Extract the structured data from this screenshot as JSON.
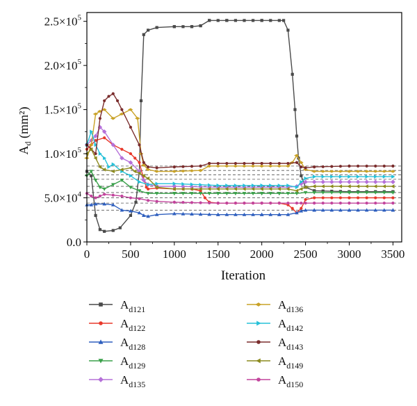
{
  "chart_data": {
    "type": "line",
    "title": "",
    "xlabel": "Iteration",
    "ylabel": "A_d (mm²)",
    "ylabel_main": "A",
    "ylabel_sub": "d",
    "ylabel_unit": " (mm²)",
    "xlim": [
      0,
      3600
    ],
    "ylim": [
      0,
      260000
    ],
    "xticks": [
      {
        "value": 0,
        "label": "0"
      },
      {
        "value": 500,
        "label": "500"
      },
      {
        "value": 1000,
        "label": "1000"
      },
      {
        "value": 1500,
        "label": "1500"
      },
      {
        "value": 2000,
        "label": "2000"
      },
      {
        "value": 2500,
        "label": "2500"
      },
      {
        "value": 3000,
        "label": "3000"
      },
      {
        "value": 3500,
        "label": "3500"
      }
    ],
    "yticks": [
      {
        "value": 0,
        "mant": "0.0",
        "exp": ""
      },
      {
        "value": 50000,
        "mant": "5.0×10",
        "exp": "4"
      },
      {
        "value": 100000,
        "mant": "1.0×10",
        "exp": "5"
      },
      {
        "value": 150000,
        "mant": "1.5×10",
        "exp": "5"
      },
      {
        "value": 200000,
        "mant": "2.0×10",
        "exp": "5"
      },
      {
        "value": 250000,
        "mant": "2.5×10",
        "exp": "5"
      }
    ],
    "grid": false,
    "legend_position": "below",
    "reference_lines": [
      36000,
      44000,
      50000,
      56000,
      63000,
      71000,
      76000,
      81000,
      86000
    ],
    "series": [
      {
        "name": "A_d121",
        "label_main": "A",
        "label_sub": "d121",
        "color": "#4a4a4a",
        "marker": "square",
        "x": [
          0,
          50,
          100,
          150,
          200,
          300,
          380,
          500,
          560,
          600,
          620,
          650,
          700,
          800,
          1000,
          1200,
          1300,
          1400,
          1600,
          2000,
          2250,
          2300,
          2350,
          2380,
          2400,
          2420,
          2450,
          2500,
          2600,
          3000,
          3500
        ],
        "values": [
          80000,
          75000,
          30000,
          14000,
          12000,
          13000,
          16000,
          30000,
          45000,
          80000,
          160000,
          235000,
          240000,
          243000,
          244000,
          244000,
          245000,
          251000,
          251000,
          251000,
          251000,
          240000,
          190000,
          150000,
          120000,
          95000,
          75000,
          62000,
          58000,
          57000,
          57000
        ]
      },
      {
        "name": "A_d122",
        "label_main": "A",
        "label_sub": "d122",
        "color": "#e8392b",
        "marker": "circle",
        "x": [
          0,
          50,
          100,
          200,
          300,
          400,
          500,
          550,
          600,
          640,
          680,
          700,
          800,
          1000,
          1200,
          1300,
          1350,
          1400,
          1500,
          2000,
          2200,
          2300,
          2350,
          2400,
          2450,
          2500,
          2600,
          3000,
          3500
        ],
        "values": [
          105000,
          110000,
          115000,
          118000,
          110000,
          105000,
          100000,
          95000,
          90000,
          75000,
          62000,
          60000,
          61000,
          60000,
          60000,
          58000,
          50000,
          45000,
          44000,
          44000,
          44000,
          42000,
          38000,
          33000,
          38000,
          48000,
          50000,
          50000,
          50000
        ]
      },
      {
        "name": "A_d128",
        "label_main": "A",
        "label_sub": "d128",
        "color": "#2e5fbe",
        "marker": "triangle",
        "x": [
          0,
          50,
          100,
          200,
          300,
          400,
          500,
          600,
          650,
          700,
          800,
          1000,
          1500,
          2000,
          2200,
          2300,
          2400,
          2450,
          2500,
          2600,
          3000,
          3500
        ],
        "values": [
          42000,
          42000,
          43000,
          43000,
          42000,
          36000,
          35000,
          33000,
          30000,
          29000,
          31000,
          32000,
          31000,
          31000,
          31000,
          31000,
          33000,
          35000,
          36000,
          36000,
          36000,
          36000
        ]
      },
      {
        "name": "A_d129",
        "label_main": "A",
        "label_sub": "d129",
        "color": "#3aa04a",
        "marker": "triangle-down",
        "x": [
          0,
          50,
          100,
          150,
          200,
          300,
          400,
          500,
          600,
          700,
          800,
          1000,
          1500,
          2000,
          2200,
          2300,
          2400,
          2500,
          2600,
          3000,
          3500
        ],
        "values": [
          75000,
          80000,
          70000,
          62000,
          60000,
          65000,
          70000,
          62000,
          58000,
          55000,
          55000,
          55000,
          55000,
          55000,
          55000,
          55000,
          55000,
          56000,
          56000,
          56000,
          56000
        ]
      },
      {
        "name": "A_d135",
        "label_main": "A",
        "label_sub": "d135",
        "color": "#b571d9",
        "marker": "diamond",
        "x": [
          0,
          50,
          100,
          150,
          200,
          300,
          400,
          500,
          600,
          650,
          700,
          800,
          1000,
          1500,
          2000,
          2300,
          2400,
          2450,
          2500,
          2600,
          3000,
          3500
        ],
        "values": [
          110000,
          115000,
          120000,
          130000,
          125000,
          110000,
          95000,
          90000,
          80000,
          70000,
          65000,
          63000,
          63000,
          62000,
          62000,
          62000,
          63000,
          66000,
          68000,
          68000,
          68000,
          68000
        ]
      },
      {
        "name": "A_d136",
        "label_main": "A",
        "label_sub": "d136",
        "color": "#c9a227",
        "marker": "diamond-left",
        "x": [
          0,
          50,
          100,
          150,
          200,
          300,
          400,
          500,
          580,
          620,
          650,
          700,
          800,
          1000,
          1300,
          1400,
          2000,
          2300,
          2350,
          2400,
          2450,
          2500,
          2600,
          3000,
          3500
        ],
        "values": [
          95000,
          110000,
          145000,
          148000,
          150000,
          140000,
          145000,
          150000,
          140000,
          100000,
          87000,
          82000,
          80000,
          80000,
          81000,
          86000,
          86000,
          86000,
          90000,
          98000,
          90000,
          82000,
          80000,
          80000,
          80000
        ]
      },
      {
        "name": "A_d142",
        "label_main": "A",
        "label_sub": "d142",
        "color": "#25c0d8",
        "marker": "triangle-right",
        "x": [
          0,
          50,
          100,
          150,
          200,
          250,
          300,
          400,
          500,
          600,
          700,
          800,
          1000,
          1500,
          2000,
          2300,
          2400,
          2450,
          2500,
          2600,
          3000,
          3500
        ],
        "values": [
          110000,
          125000,
          110000,
          100000,
          95000,
          85000,
          88000,
          80000,
          75000,
          68000,
          65000,
          66000,
          66000,
          64000,
          64000,
          64000,
          62000,
          68000,
          72000,
          74000,
          74000,
          74000
        ]
      },
      {
        "name": "A_d143",
        "label_main": "A",
        "label_sub": "d143",
        "color": "#7a2d2d",
        "marker": "circle",
        "x": [
          0,
          50,
          100,
          150,
          200,
          250,
          300,
          350,
          400,
          500,
          600,
          650,
          700,
          800,
          1000,
          1300,
          1400,
          2000,
          2300,
          2400,
          2450,
          2500,
          2600,
          3000,
          3500
        ],
        "values": [
          110000,
          105000,
          100000,
          140000,
          160000,
          165000,
          168000,
          160000,
          150000,
          130000,
          110000,
          90000,
          85000,
          84000,
          85000,
          86000,
          89000,
          89000,
          89000,
          90000,
          85000,
          84000,
          85000,
          86000,
          86000
        ]
      },
      {
        "name": "A_d149",
        "label_main": "A",
        "label_sub": "d149",
        "color": "#8c8a1e",
        "marker": "triangle-left",
        "x": [
          0,
          50,
          100,
          150,
          200,
          300,
          400,
          500,
          550,
          600,
          650,
          700,
          800,
          1000,
          1500,
          2000,
          2300,
          2400,
          2450,
          2500,
          2600,
          3000,
          3500
        ],
        "values": [
          100000,
          105000,
          95000,
          85000,
          82000,
          80000,
          82000,
          84000,
          80000,
          78000,
          75000,
          72000,
          62000,
          60000,
          60000,
          60000,
          60000,
          58000,
          60000,
          62000,
          63000,
          63000,
          63000
        ]
      },
      {
        "name": "A_d150",
        "label_main": "A",
        "label_sub": "d150",
        "color": "#c2449c",
        "marker": "circle",
        "x": [
          0,
          50,
          100,
          150,
          200,
          300,
          400,
          500,
          600,
          700,
          800,
          1000,
          1500,
          2000,
          2300,
          2400,
          2450,
          2500,
          2600,
          3000,
          3500
        ],
        "values": [
          55000,
          52000,
          50000,
          52000,
          54000,
          53000,
          52000,
          50000,
          49000,
          47000,
          46000,
          45000,
          44000,
          44000,
          44000,
          44000,
          44000,
          44000,
          44000,
          44000,
          44000
        ]
      }
    ]
  }
}
